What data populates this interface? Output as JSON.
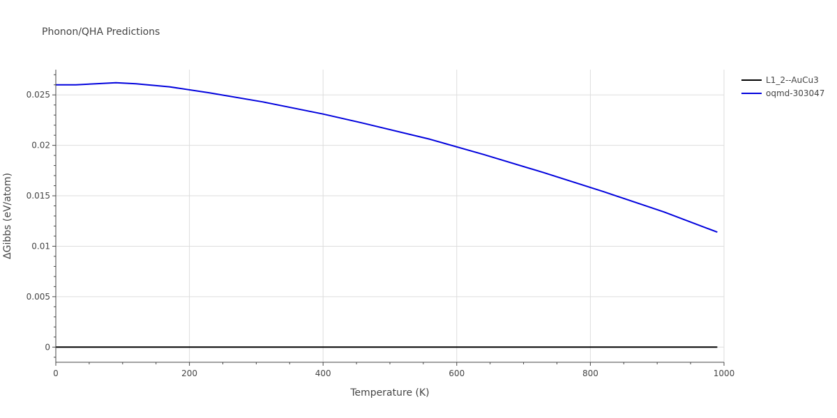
{
  "chart_data": {
    "type": "line",
    "title": "Phonon/QHA Predictions",
    "xlabel": "Temperature (K)",
    "ylabel": "ΔGibbs (eV/atom)",
    "xlim": [
      0,
      1000
    ],
    "ylim": [
      -0.0015,
      0.0275
    ],
    "x_ticks": [
      0,
      200,
      400,
      600,
      800,
      1000
    ],
    "x_tick_labels": [
      "0",
      "200",
      "400",
      "600",
      "800",
      "1000"
    ],
    "y_ticks": [
      0,
      0.005,
      0.01,
      0.015,
      0.02,
      0.025
    ],
    "y_tick_labels": [
      "0",
      "0.005",
      "0.01",
      "0.015",
      "0.02",
      "0.025"
    ],
    "grid": true,
    "legend_position": "top-right",
    "series": [
      {
        "name": "L1_2--AuCu3",
        "color": "#000000",
        "x": [
          0,
          990
        ],
        "y": [
          0,
          0
        ]
      },
      {
        "name": "oqmd-303047",
        "color": "#0000dd",
        "x": [
          0,
          30,
          60,
          90,
          120,
          170,
          230,
          310,
          400,
          460,
          560,
          640,
          730,
          820,
          910,
          990
        ],
        "y": [
          0.026,
          0.026,
          0.0261,
          0.0262,
          0.0261,
          0.0258,
          0.0252,
          0.0243,
          0.0231,
          0.0222,
          0.0206,
          0.0191,
          0.0173,
          0.0154,
          0.0134,
          0.0114
        ]
      }
    ]
  }
}
